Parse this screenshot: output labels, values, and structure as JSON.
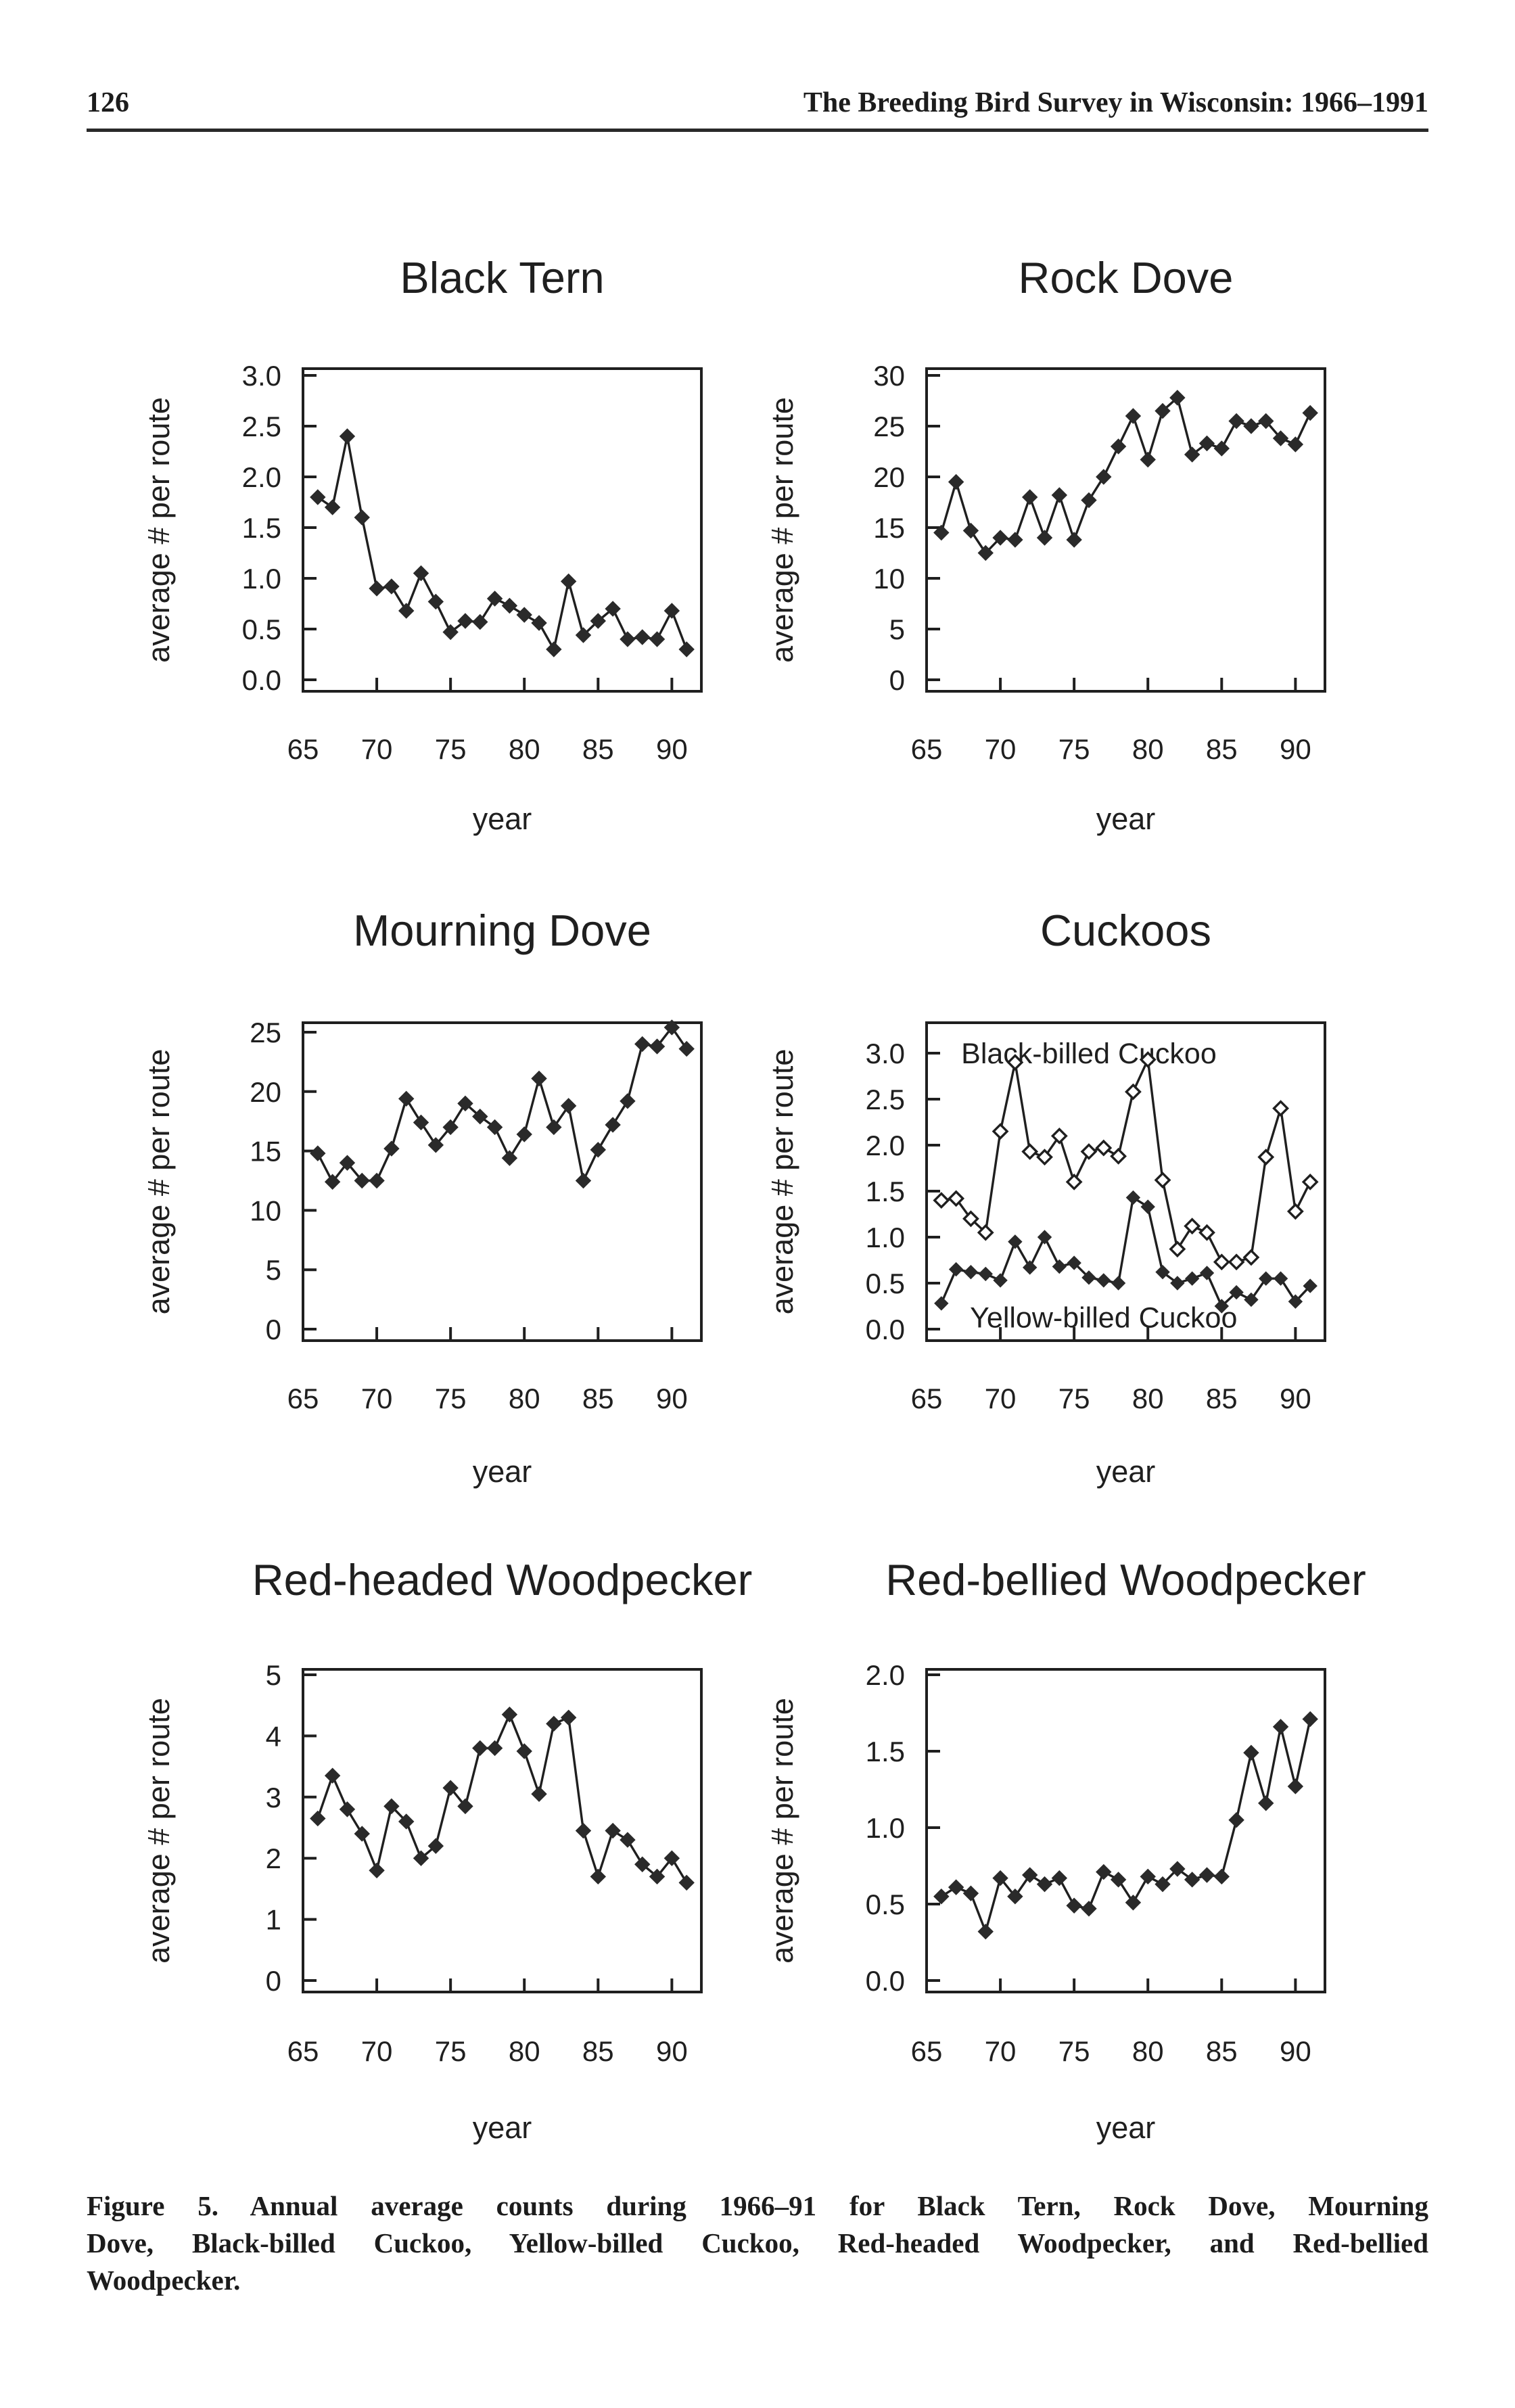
{
  "page": {
    "number": "126",
    "running_title": "The Breeding Bird Survey in Wisconsin: 1966–1991",
    "caption_lines": [
      "Figure 5. Annual average counts during 1966–91 for Black Tern, Rock Dove, Mourning",
      "Dove, Black-billed Cuckoo, Yellow-billed Cuckoo, Red-headed Woodpecker, and Red-bellied",
      "Woodpecker."
    ],
    "ink_color": "#1f1f1f"
  },
  "chart_data": [
    {
      "type": "line",
      "title": "Black Tern",
      "xlabel": "year",
      "ylabel": "average # per route",
      "xlim": [
        65,
        92
      ],
      "x_ticks": [
        65,
        70,
        75,
        80,
        85,
        90
      ],
      "ylim": [
        0,
        3
      ],
      "y_ticks": [
        0,
        0.5,
        1,
        1.5,
        2,
        2.5,
        3
      ],
      "y_tick_decimals": 1,
      "grid": false,
      "x": [
        66,
        67,
        68,
        69,
        70,
        71,
        72,
        73,
        74,
        75,
        76,
        77,
        78,
        79,
        80,
        81,
        82,
        83,
        84,
        85,
        86,
        87,
        88,
        89,
        90,
        91
      ],
      "series": [
        {
          "name": "Black Tern",
          "marker": "filled",
          "values": [
            1.8,
            1.7,
            2.4,
            1.6,
            0.9,
            0.92,
            0.68,
            1.05,
            0.77,
            0.47,
            0.58,
            0.57,
            0.8,
            0.73,
            0.64,
            0.56,
            0.3,
            0.97,
            0.44,
            0.58,
            0.7,
            0.4,
            0.42,
            0.4,
            0.68,
            0.3
          ]
        }
      ],
      "annotations": []
    },
    {
      "type": "line",
      "title": "Rock Dove",
      "xlabel": "year",
      "ylabel": "average # per route",
      "xlim": [
        65,
        92
      ],
      "x_ticks": [
        65,
        70,
        75,
        80,
        85,
        90
      ],
      "ylim": [
        0,
        30
      ],
      "y_ticks": [
        0,
        5,
        10,
        15,
        20,
        25,
        30
      ],
      "y_tick_decimals": 0,
      "grid": false,
      "x": [
        66,
        67,
        68,
        69,
        70,
        71,
        72,
        73,
        74,
        75,
        76,
        77,
        78,
        79,
        80,
        81,
        82,
        83,
        84,
        85,
        86,
        87,
        88,
        89,
        90,
        91
      ],
      "series": [
        {
          "name": "Rock Dove",
          "marker": "filled",
          "values": [
            14.5,
            19.5,
            14.7,
            12.5,
            14.0,
            13.8,
            18.0,
            14.0,
            18.2,
            13.8,
            17.7,
            20.0,
            23.0,
            26.0,
            21.7,
            26.5,
            27.8,
            22.2,
            23.3,
            22.8,
            25.5,
            25.0,
            25.5,
            23.8,
            23.2,
            26.3
          ]
        }
      ],
      "annotations": []
    },
    {
      "type": "line",
      "title": "Mourning Dove",
      "xlabel": "year",
      "ylabel": "average # per route",
      "xlim": [
        65,
        92
      ],
      "x_ticks": [
        65,
        70,
        75,
        80,
        85,
        90
      ],
      "ylim": [
        0,
        25
      ],
      "y_ticks": [
        0,
        5,
        10,
        15,
        20,
        25
      ],
      "y_tick_decimals": 0,
      "grid": false,
      "x": [
        66,
        67,
        68,
        69,
        70,
        71,
        72,
        73,
        74,
        75,
        76,
        77,
        78,
        79,
        80,
        81,
        82,
        83,
        84,
        85,
        86,
        87,
        88,
        89,
        90,
        91
      ],
      "series": [
        {
          "name": "Mourning Dove",
          "marker": "filled",
          "values": [
            14.8,
            12.4,
            14.0,
            12.5,
            12.5,
            15.2,
            19.4,
            17.4,
            15.5,
            17.0,
            19.0,
            17.9,
            17.0,
            14.4,
            16.4,
            21.1,
            17.0,
            18.8,
            12.5,
            15.1,
            17.2,
            19.2,
            24.0,
            23.8,
            25.4,
            23.6
          ]
        }
      ],
      "annotations": []
    },
    {
      "type": "line",
      "title": "Cuckoos",
      "xlabel": "year",
      "ylabel": "average # per route",
      "xlim": [
        65,
        92
      ],
      "x_ticks": [
        65,
        70,
        75,
        80,
        85,
        90
      ],
      "ylim": [
        0,
        3
      ],
      "y_ticks": [
        0,
        0.5,
        1,
        1.5,
        2,
        2.5,
        3
      ],
      "y_tick_decimals": 1,
      "grid": false,
      "x": [
        66,
        67,
        68,
        69,
        70,
        71,
        72,
        73,
        74,
        75,
        76,
        77,
        78,
        79,
        80,
        81,
        82,
        83,
        84,
        85,
        86,
        87,
        88,
        89,
        90,
        91
      ],
      "series": [
        {
          "name": "Black-billed Cuckoo",
          "marker": "open",
          "values": [
            1.4,
            1.42,
            1.2,
            1.05,
            2.15,
            2.9,
            1.93,
            1.87,
            2.1,
            1.6,
            1.93,
            1.97,
            1.88,
            2.58,
            2.93,
            1.62,
            0.87,
            1.12,
            1.05,
            0.73,
            0.73,
            0.78,
            1.87,
            2.4,
            1.28,
            1.6
          ]
        },
        {
          "name": "Yellow-billed Cuckoo",
          "marker": "filled",
          "values": [
            0.28,
            0.65,
            0.62,
            0.6,
            0.53,
            0.95,
            0.67,
            1.0,
            0.68,
            0.72,
            0.56,
            0.53,
            0.5,
            1.43,
            1.33,
            0.62,
            0.5,
            0.55,
            0.61,
            0.25,
            0.4,
            0.32,
            0.55,
            0.55,
            0.3,
            0.47
          ]
        }
      ],
      "annotations": [
        {
          "x": 76,
          "y": 3.0,
          "text": "Black-billed Cuckoo"
        },
        {
          "x": 77,
          "y": 0.13,
          "text": "Yellow-billed Cuckoo"
        }
      ]
    },
    {
      "type": "line",
      "title": "Red-headed Woodpecker",
      "xlabel": "year",
      "ylabel": "average # per route",
      "xlim": [
        65,
        92
      ],
      "x_ticks": [
        65,
        70,
        75,
        80,
        85,
        90
      ],
      "ylim": [
        0,
        5
      ],
      "y_ticks": [
        0,
        1,
        2,
        3,
        4,
        5
      ],
      "y_tick_decimals": 0,
      "grid": false,
      "x": [
        66,
        67,
        68,
        69,
        70,
        71,
        72,
        73,
        74,
        75,
        76,
        77,
        78,
        79,
        80,
        81,
        82,
        83,
        84,
        85,
        86,
        87,
        88,
        89,
        90,
        91
      ],
      "series": [
        {
          "name": "Red-headed Woodpecker",
          "marker": "filled",
          "values": [
            2.65,
            3.35,
            2.8,
            2.4,
            1.8,
            2.85,
            2.6,
            2.0,
            2.2,
            3.15,
            2.85,
            3.8,
            3.8,
            4.35,
            3.75,
            3.05,
            4.2,
            4.3,
            2.45,
            1.7,
            2.45,
            2.3,
            1.9,
            1.7,
            2.0,
            1.6
          ]
        }
      ],
      "annotations": []
    },
    {
      "type": "line",
      "title": "Red-bellied Woodpecker",
      "xlabel": "year",
      "ylabel": "average # per route",
      "xlim": [
        65,
        92
      ],
      "x_ticks": [
        65,
        70,
        75,
        80,
        85,
        90
      ],
      "ylim": [
        0,
        2
      ],
      "y_ticks": [
        0,
        0.5,
        1,
        1.5,
        2
      ],
      "y_tick_decimals": 1,
      "grid": false,
      "x": [
        66,
        67,
        68,
        69,
        70,
        71,
        72,
        73,
        74,
        75,
        76,
        77,
        78,
        79,
        80,
        81,
        82,
        83,
        84,
        85,
        86,
        87,
        88,
        89,
        90,
        91
      ],
      "series": [
        {
          "name": "Red-bellied Woodpecker",
          "marker": "filled",
          "values": [
            0.55,
            0.61,
            0.57,
            0.32,
            0.67,
            0.55,
            0.69,
            0.63,
            0.67,
            0.49,
            0.47,
            0.71,
            0.66,
            0.51,
            0.68,
            0.63,
            0.73,
            0.66,
            0.69,
            0.68,
            1.05,
            1.49,
            1.16,
            1.66,
            1.27,
            1.71
          ]
        }
      ],
      "annotations": []
    }
  ]
}
